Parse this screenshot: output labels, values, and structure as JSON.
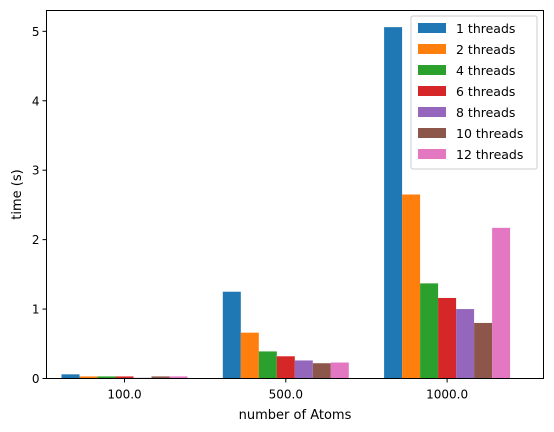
{
  "chart_data": {
    "type": "bar",
    "title": "",
    "xlabel": "number of Atoms",
    "ylabel": "time (s)",
    "categories": [
      "100.0",
      "500.0",
      "1000.0"
    ],
    "ylim": [
      0,
      5.3
    ],
    "yticks": [
      "0",
      "1",
      "2",
      "3",
      "4",
      "5"
    ],
    "grid": false,
    "legend_position": "top-right",
    "series": [
      {
        "name": "1 threads",
        "color": "#1f77b4",
        "values": [
          0.06,
          1.25,
          5.06
        ]
      },
      {
        "name": "2 threads",
        "color": "#ff7f0e",
        "values": [
          0.03,
          0.66,
          2.65
        ]
      },
      {
        "name": "4 threads",
        "color": "#2ca02c",
        "values": [
          0.03,
          0.39,
          1.37
        ]
      },
      {
        "name": "6 threads",
        "color": "#d62728",
        "values": [
          0.03,
          0.32,
          1.16
        ]
      },
      {
        "name": "8 threads",
        "color": "#9467bd",
        "values": [
          0.01,
          0.26,
          1.0
        ]
      },
      {
        "name": "10 threads",
        "color": "#8c564b",
        "values": [
          0.03,
          0.22,
          0.8
        ]
      },
      {
        "name": "12 threads",
        "color": "#e377c2",
        "values": [
          0.03,
          0.23,
          2.17
        ]
      }
    ]
  }
}
